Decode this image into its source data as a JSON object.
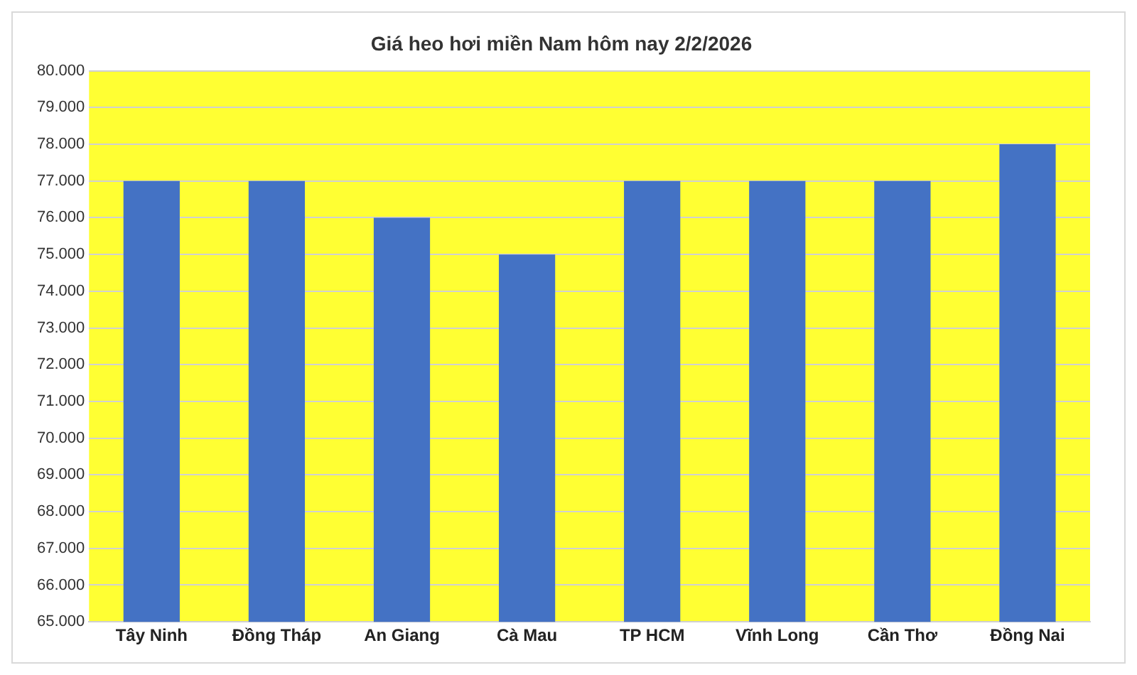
{
  "chart_data": {
    "type": "bar",
    "title": "Giá heo hơi miền Nam hôm nay 2/2/2026",
    "categories": [
      "Tây Ninh",
      "Đồng Tháp",
      "An Giang",
      "Cà Mau",
      "TP HCM",
      "Vĩnh Long",
      "Cần Thơ",
      "Đồng Nai"
    ],
    "values": [
      77000,
      77000,
      76000,
      75000,
      77000,
      77000,
      77000,
      78000
    ],
    "color": "#4472c4",
    "ylim": [
      65000,
      80000
    ],
    "yticks": [
      {
        "value": 65000,
        "label": "65.000"
      },
      {
        "value": 66000,
        "label": "66.000"
      },
      {
        "value": 67000,
        "label": "67.000"
      },
      {
        "value": 68000,
        "label": "68.000"
      },
      {
        "value": 69000,
        "label": "69.000"
      },
      {
        "value": 70000,
        "label": "70.000"
      },
      {
        "value": 71000,
        "label": "71.000"
      },
      {
        "value": 72000,
        "label": "72.000"
      },
      {
        "value": 73000,
        "label": "73.000"
      },
      {
        "value": 74000,
        "label": "74.000"
      },
      {
        "value": 75000,
        "label": "75.000"
      },
      {
        "value": 76000,
        "label": "76.000"
      },
      {
        "value": 77000,
        "label": "77.000"
      },
      {
        "value": 78000,
        "label": "78.000"
      },
      {
        "value": 79000,
        "label": "79.000"
      },
      {
        "value": 80000,
        "label": "80.000"
      }
    ],
    "grid": "y",
    "legend": false
  }
}
